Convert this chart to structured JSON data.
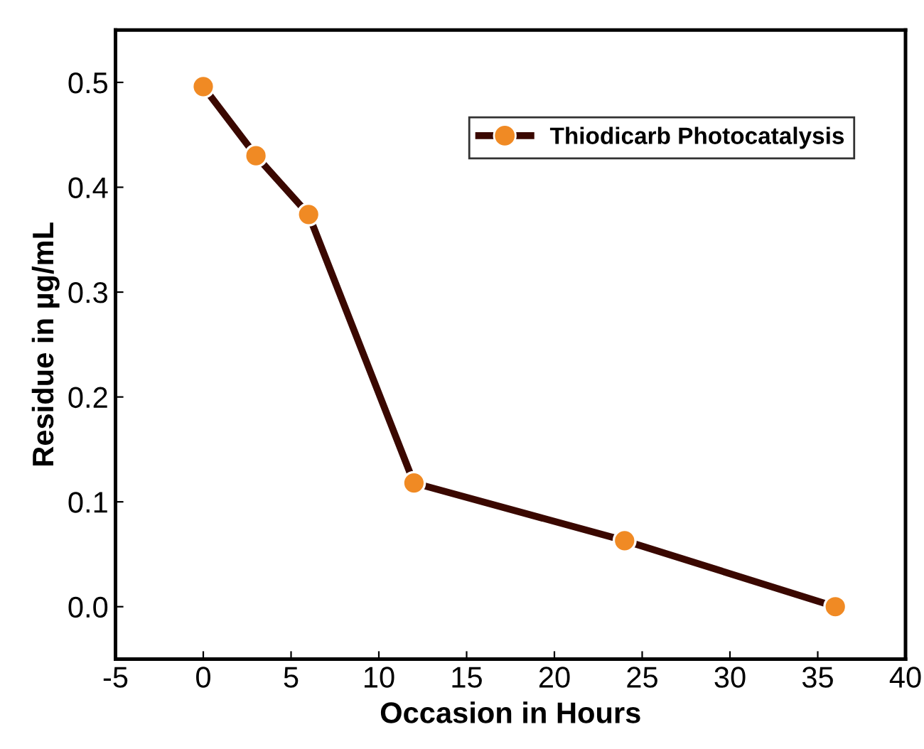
{
  "chart_data": {
    "type": "line",
    "xlabel": "Occasion in Hours",
    "ylabel": "Residue in µg/mL",
    "x": [
      0,
      3,
      6,
      12,
      24,
      36
    ],
    "series": [
      {
        "name": "Thiodicarb Photocatalysis",
        "color": "#3a0800",
        "colors": [
          "#f08a24",
          "#f08a24",
          "#f08a24",
          "#f08a24",
          "#f08a24",
          "#f08a24"
        ],
        "values": [
          0.496,
          0.43,
          0.374,
          0.118,
          0.063,
          0.0
        ]
      }
    ],
    "xlim": [
      -5,
      40
    ],
    "xticks": [
      -5,
      0,
      5,
      10,
      15,
      20,
      25,
      30,
      35,
      40
    ],
    "ylim": [
      -0.05,
      0.55
    ],
    "yticks": [
      {
        "value": 0,
        "label": "0.0"
      },
      {
        "value": 0.1,
        "label": "0.1"
      },
      {
        "value": 0.2,
        "label": "0.2"
      },
      {
        "value": 0.3,
        "label": "0.3"
      },
      {
        "value": 0.4,
        "label": "0.4"
      },
      {
        "value": 0.5,
        "label": "0.5"
      }
    ],
    "marker": "circle",
    "line_style": "solid",
    "legend": "top right",
    "grid": false
  }
}
